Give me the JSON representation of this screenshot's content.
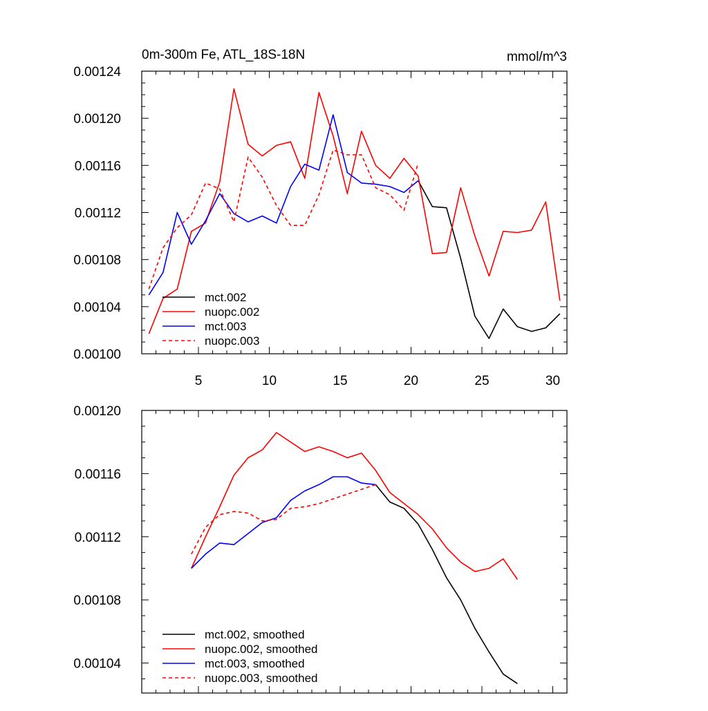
{
  "chart_data": [
    {
      "type": "line",
      "title": "0m-300m Fe, ATL_18S-18N",
      "units": "mmol/m^3",
      "xlim": [
        1,
        31
      ],
      "ylim": [
        0.001,
        0.00124
      ],
      "xticks": [
        5,
        10,
        15,
        20,
        25,
        30
      ],
      "xtick_labels": [
        "5",
        "10",
        "15",
        "20",
        "25",
        "30"
      ],
      "yticks": [
        0.001,
        0.00104,
        0.00108,
        0.00112,
        0.00116,
        0.0012,
        0.00124
      ],
      "ytick_labels": [
        "0.00100",
        "0.00104",
        "0.00108",
        "0.00112",
        "0.00116",
        "0.00120",
        "0.00124"
      ],
      "legend_position": "bottom-left",
      "series": [
        {
          "name": "mct.002",
          "color": "#000000",
          "dash": "solid",
          "x": [
            20.5,
            21.5,
            22.5,
            23.5,
            24.5,
            25.5,
            26.5,
            27.5,
            28.5,
            29.5,
            30.5
          ],
          "values": [
            0.001147,
            0.001125,
            0.001124,
            0.001081,
            0.001032,
            0.001013,
            0.001038,
            0.001023,
            0.001019,
            0.001022,
            0.001034
          ]
        },
        {
          "name": "nuopc.002",
          "color": "#ff0000",
          "dash": "solid",
          "x": [
            1.5,
            2.5,
            3.5,
            4.5,
            5.5,
            6.5,
            7.5,
            8.5,
            9.5,
            10.5,
            11.5,
            12.5,
            13.5,
            14.5,
            15.5,
            16.5,
            17.5,
            18.5,
            19.5,
            20.5,
            21.5,
            22.5,
            23.5,
            24.5,
            25.5,
            26.5,
            27.5,
            28.5,
            29.5,
            30.5
          ],
          "values": [
            0.001017,
            0.001047,
            0.001055,
            0.001104,
            0.001111,
            0.001146,
            0.001225,
            0.001178,
            0.001168,
            0.001177,
            0.00118,
            0.001149,
            0.001222,
            0.001185,
            0.001136,
            0.001189,
            0.00116,
            0.001149,
            0.001166,
            0.001151,
            0.001085,
            0.001086,
            0.001141,
            0.0011,
            0.001066,
            0.001104,
            0.001103,
            0.001105,
            0.001129,
            0.001045
          ]
        },
        {
          "name": "mct.003",
          "color": "#0000ff",
          "dash": "solid",
          "x": [
            1.5,
            2.5,
            3.5,
            4.5,
            5.5,
            6.5,
            7.5,
            8.5,
            9.5,
            10.5,
            11.5,
            12.5,
            13.5,
            14.5,
            15.5,
            16.5,
            17.5,
            18.5,
            19.5,
            20.5
          ],
          "values": [
            0.00105,
            0.001069,
            0.00112,
            0.001093,
            0.001113,
            0.001136,
            0.001119,
            0.001112,
            0.001117,
            0.001111,
            0.001142,
            0.001161,
            0.001156,
            0.001203,
            0.001154,
            0.001145,
            0.001144,
            0.001142,
            0.001137,
            0.001147
          ]
        },
        {
          "name": "nuopc.003",
          "color": "#ff0000",
          "dash": "dashed",
          "x": [
            1.5,
            2.5,
            3.5,
            4.5,
            5.5,
            6.5,
            7.5,
            8.5,
            9.5,
            10.5,
            11.5,
            12.5,
            13.5,
            14.5,
            15.5,
            16.5,
            17.5,
            18.5,
            19.5,
            20.5
          ],
          "values": [
            0.001055,
            0.00109,
            0.001107,
            0.001118,
            0.001145,
            0.00114,
            0.001112,
            0.001167,
            0.00115,
            0.001126,
            0.001109,
            0.001109,
            0.001135,
            0.001173,
            0.001169,
            0.001169,
            0.001141,
            0.001135,
            0.001122,
            0.001162
          ]
        }
      ]
    },
    {
      "type": "line",
      "title": "",
      "xlim": [
        1,
        31
      ],
      "ylim": [
        0.001021,
        0.0012
      ],
      "xticks": [
        5,
        10,
        15,
        20,
        25,
        30
      ],
      "xtick_labels": [],
      "yticks": [
        0.00104,
        0.00108,
        0.00112,
        0.00116,
        0.0012
      ],
      "ytick_labels": [
        "0.00104",
        "0.00108",
        "0.00112",
        "0.00116",
        "0.00120"
      ],
      "legend_position": "bottom-left",
      "series": [
        {
          "name": "mct.002, smoothed",
          "color": "#000000",
          "dash": "solid",
          "x": [
            17.5,
            18.5,
            19.5,
            20.5,
            21.5,
            22.5,
            23.5,
            24.5,
            25.5,
            26.5,
            27.5
          ],
          "values": [
            0.001153,
            0.001142,
            0.001138,
            0.001128,
            0.001112,
            0.001094,
            0.00108,
            0.001062,
            0.001047,
            0.001033,
            0.001027
          ]
        },
        {
          "name": "nuopc.002, smoothed",
          "color": "#ff0000",
          "dash": "solid",
          "x": [
            4.5,
            5.5,
            6.5,
            7.5,
            8.5,
            9.5,
            10.5,
            11.5,
            12.5,
            13.5,
            14.5,
            15.5,
            16.5,
            17.5,
            18.5,
            19.5,
            20.5,
            21.5,
            22.5,
            23.5,
            24.5,
            25.5,
            26.5,
            27.5
          ],
          "values": [
            0.0011,
            0.00112,
            0.001139,
            0.001159,
            0.00117,
            0.001175,
            0.001186,
            0.00118,
            0.001174,
            0.001177,
            0.001174,
            0.00117,
            0.001173,
            0.001162,
            0.001148,
            0.001141,
            0.001134,
            0.001125,
            0.001113,
            0.001104,
            0.001098,
            0.0011,
            0.001106,
            0.001093
          ]
        },
        {
          "name": "mct.003, smoothed",
          "color": "#0000ff",
          "dash": "solid",
          "x": [
            4.5,
            5.5,
            6.5,
            7.5,
            8.5,
            9.5,
            10.5,
            11.5,
            12.5,
            13.5,
            14.5,
            15.5,
            16.5,
            17.5
          ],
          "values": [
            0.0011,
            0.001109,
            0.001116,
            0.001115,
            0.001122,
            0.001129,
            0.001132,
            0.001143,
            0.001149,
            0.001153,
            0.001158,
            0.001158,
            0.001154,
            0.001153
          ]
        },
        {
          "name": "nuopc.003, smoothed",
          "color": "#ff0000",
          "dash": "dashed",
          "x": [
            4.5,
            5.5,
            6.5,
            7.5,
            8.5,
            9.5,
            10.5,
            11.5,
            12.5,
            13.5,
            14.5,
            15.5,
            16.5,
            17.5
          ],
          "values": [
            0.001109,
            0.001126,
            0.001134,
            0.001136,
            0.001135,
            0.00113,
            0.001131,
            0.001138,
            0.001139,
            0.001141,
            0.001144,
            0.001147,
            0.00115,
            0.001153
          ]
        }
      ]
    }
  ]
}
